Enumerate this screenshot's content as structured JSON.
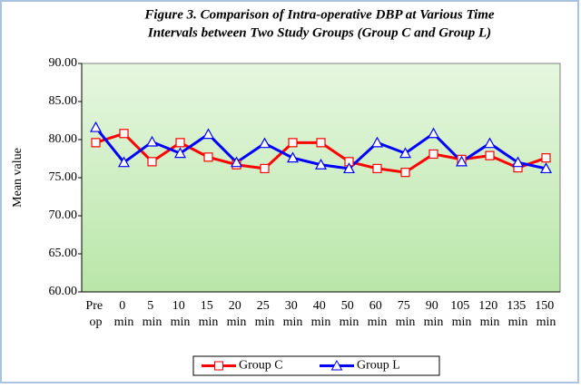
{
  "chart_data": {
    "type": "line",
    "title": [
      "Figure 3. Comparison of Intra-operative DBP at Various Time",
      "Intervals between Two Study Groups (Group C and Group L)"
    ],
    "ylabel": "Mean value",
    "categories": [
      "Pre op",
      "0 min",
      "5 min",
      "10 min",
      "15 min",
      "20 min",
      "25 min",
      "30 min",
      "40 min",
      "50 min",
      "60 min",
      "75 min",
      "90 min",
      "105 min",
      "120 min",
      "135 min",
      "150 min"
    ],
    "series": [
      {
        "name": "Group C",
        "color": "#ff0000",
        "marker": "square",
        "values": [
          79.6,
          80.8,
          77.1,
          79.6,
          77.7,
          76.7,
          76.2,
          79.6,
          79.6,
          77.1,
          76.2,
          75.7,
          78.1,
          77.4,
          77.9,
          76.3,
          77.6
        ]
      },
      {
        "name": "Group L",
        "color": "#0000ff",
        "marker": "triangle",
        "values": [
          81.6,
          77.0,
          79.7,
          78.2,
          80.7,
          77.0,
          79.5,
          77.6,
          76.7,
          76.2,
          79.6,
          78.2,
          80.8,
          77.1,
          79.5,
          77.0,
          76.2
        ]
      }
    ],
    "ylim": [
      60,
      90
    ],
    "yticks": [
      {
        "value": 60,
        "label": "60.00"
      },
      {
        "value": 65,
        "label": "65.00"
      },
      {
        "value": 70,
        "label": "70.00"
      },
      {
        "value": 75,
        "label": "75.00"
      },
      {
        "value": 80,
        "label": "80.00"
      },
      {
        "value": 85,
        "label": "85.00"
      },
      {
        "value": 90,
        "label": "90.00"
      }
    ],
    "legend": "bottom"
  }
}
